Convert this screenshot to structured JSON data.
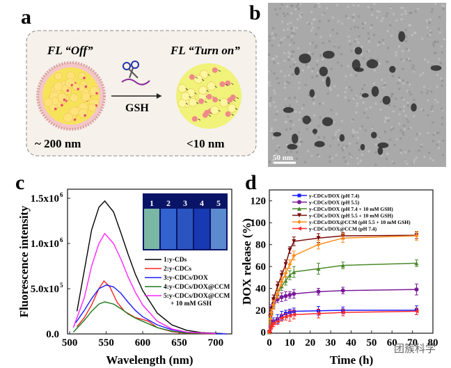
{
  "panel_labels": [
    "a",
    "b",
    "c",
    "d"
  ],
  "panel_a": {
    "left_title": "FL “Off”",
    "right_title": "FL “Turn on”",
    "arrow_label": "GSH",
    "left_size": "~ 200 nm",
    "right_size": "<10 nm",
    "icon": "scissors-icon"
  },
  "panel_b": {
    "scale_bar": "50 nm"
  },
  "chart_data": [
    {
      "type": "line",
      "panel": "c",
      "xlabel": "Wavelength (nm)",
      "ylabel": "Fluorescence intensity",
      "xlim": [
        497,
        722
      ],
      "ylim": [
        0,
        1600000
      ],
      "xticks": [
        500,
        550,
        600,
        650,
        700
      ],
      "yticks": [
        {
          "value": 0,
          "label": "0.0"
        },
        {
          "value": 500000,
          "label": "5.0x10",
          "exp": "5"
        },
        {
          "value": 1000000,
          "label": "1.0x10",
          "exp": "6"
        },
        {
          "value": 1500000,
          "label": "1.5x10",
          "exp": "6"
        }
      ],
      "inset_vials": [
        "1",
        "2",
        "3",
        "4",
        "5"
      ],
      "legend_placement": "right",
      "series": [
        {
          "name": "1:y-CDs",
          "color": "#000000",
          "points": [
            [
              510,
              250000
            ],
            [
              520,
              700000
            ],
            [
              530,
              1150000
            ],
            [
              540,
              1400000
            ],
            [
              548,
              1470000
            ],
            [
              560,
              1350000
            ],
            [
              570,
              1120000
            ],
            [
              580,
              880000
            ],
            [
              590,
              660000
            ],
            [
              600,
              480000
            ],
            [
              620,
              230000
            ],
            [
              640,
              100000
            ],
            [
              660,
              40000
            ],
            [
              680,
              15000
            ],
            [
              710,
              3000
            ]
          ]
        },
        {
          "name": "2:y-CDCs",
          "color": "#ff2020",
          "points": [
            [
              510,
              80000
            ],
            [
              520,
              180000
            ],
            [
              530,
              320000
            ],
            [
              540,
              500000
            ],
            [
              547,
              585000
            ],
            [
              555,
              520000
            ],
            [
              565,
              350000
            ],
            [
              575,
              250000
            ],
            [
              590,
              180000
            ],
            [
              600,
              160000
            ],
            [
              608,
              140000
            ],
            [
              620,
              70000
            ],
            [
              640,
              25000
            ],
            [
              660,
              8000
            ],
            [
              700,
              1000
            ]
          ]
        },
        {
          "name": "3:y-CDCs/DOX",
          "color": "#1a1aff",
          "points": [
            [
              508,
              120000
            ],
            [
              520,
              260000
            ],
            [
              530,
              390000
            ],
            [
              540,
              500000
            ],
            [
              550,
              540000
            ],
            [
              560,
              520000
            ],
            [
              570,
              450000
            ],
            [
              580,
              350000
            ],
            [
              590,
              260000
            ],
            [
              600,
              190000
            ],
            [
              620,
              100000
            ],
            [
              640,
              45000
            ],
            [
              660,
              18000
            ],
            [
              680,
              7000
            ],
            [
              715,
              1000
            ]
          ]
        },
        {
          "name": "4:y-CDCs/DOX@CCM",
          "color": "#1a7a1a",
          "points": [
            [
              505,
              20000
            ],
            [
              520,
              150000
            ],
            [
              530,
              250000
            ],
            [
              540,
              330000
            ],
            [
              548,
              355000
            ],
            [
              560,
              330000
            ],
            [
              570,
              280000
            ],
            [
              580,
              220000
            ],
            [
              590,
              175000
            ],
            [
              600,
              140000
            ],
            [
              620,
              70000
            ],
            [
              640,
              30000
            ],
            [
              660,
              10000
            ],
            [
              700,
              2000
            ]
          ]
        },
        {
          "name": "5:y-CDCs/DOX@CCM",
          "name2": "+ 10 mM GSH",
          "color": "#ff22ff",
          "points": [
            [
              505,
              70000
            ],
            [
              520,
              400000
            ],
            [
              530,
              750000
            ],
            [
              540,
              1000000
            ],
            [
              548,
              1110000
            ],
            [
              560,
              1000000
            ],
            [
              570,
              830000
            ],
            [
              580,
              630000
            ],
            [
              590,
              460000
            ],
            [
              600,
              320000
            ],
            [
              620,
              140000
            ],
            [
              640,
              55000
            ],
            [
              660,
              20000
            ],
            [
              700,
              3000
            ]
          ]
        }
      ]
    },
    {
      "type": "line",
      "panel": "d",
      "xlabel": "Time (h)",
      "ylabel": "DOX release (%)",
      "xlim": [
        0,
        80
      ],
      "ylim": [
        -1,
        130
      ],
      "xticks": [
        0,
        10,
        20,
        30,
        40,
        50,
        60,
        70,
        80
      ],
      "yticks": [
        0,
        20,
        40,
        60,
        80,
        100,
        120
      ],
      "legend_placement": "top-left",
      "x": [
        0,
        0.5,
        1,
        2,
        4,
        6,
        8,
        10,
        12,
        24,
        36,
        72
      ],
      "series": [
        {
          "name": "y-CDCs/DOX (pH 7.4)",
          "color": "#1a1aff",
          "marker": "square",
          "values": [
            0,
            5,
            8,
            10,
            12,
            15,
            17,
            18,
            19,
            19.5,
            20,
            20
          ],
          "err": [
            0,
            2,
            3,
            3,
            4,
            4,
            3,
            3,
            3,
            4,
            3,
            4
          ]
        },
        {
          "name": "y-CDCs/DOX (pH 5.5)",
          "color": "#7a1a9a",
          "marker": "circle",
          "values": [
            0,
            15,
            22,
            26,
            30,
            32,
            33,
            34,
            35,
            37,
            38,
            39
          ],
          "err": [
            0,
            3,
            3,
            4,
            3,
            4,
            4,
            3,
            4,
            3,
            3,
            5
          ]
        },
        {
          "name": "y-CDCs/DOX (pH 7.4 + 10 mM GSH)",
          "color": "#4a8a2a",
          "marker": "triangle-up",
          "values": [
            0,
            10,
            18,
            25,
            35,
            42,
            47,
            52,
            55,
            58,
            61,
            63
          ],
          "err": [
            0,
            3,
            3,
            4,
            4,
            4,
            4,
            4,
            5,
            5,
            3,
            3
          ]
        },
        {
          "name": "y-CDCs/DOX (pH 5.5 + 10 mM GSH)",
          "color": "#7a0a0a",
          "marker": "triangle-down",
          "values": [
            0,
            14,
            20,
            30,
            42,
            52,
            62,
            75,
            83,
            86,
            88,
            88.5
          ],
          "err": [
            0,
            3,
            3,
            4,
            4,
            4,
            4,
            3,
            4,
            4,
            3,
            3
          ]
        },
        {
          "name": "y-CDCs/DOX@CCM (pH 5.5 + 10 mM GSH)",
          "color": "#ff8c1a",
          "marker": "diamond",
          "values": [
            0,
            12,
            18,
            25,
            35,
            46,
            54,
            62,
            70,
            80,
            86,
            88
          ],
          "err": [
            0,
            3,
            3,
            4,
            4,
            4,
            4,
            4,
            4,
            4,
            4,
            4
          ]
        },
        {
          "name": "y-CDCs/DOX@CCM (pH 7.4)",
          "color": "#ff2a2a",
          "marker": "triangle-left",
          "values": [
            0,
            4,
            6,
            8,
            10,
            13,
            14,
            15,
            16,
            17,
            18,
            19
          ],
          "err": [
            0,
            2,
            3,
            3,
            3,
            3,
            3,
            5,
            4,
            4,
            3,
            3
          ]
        }
      ]
    }
  ],
  "watermark": "团簇科学"
}
